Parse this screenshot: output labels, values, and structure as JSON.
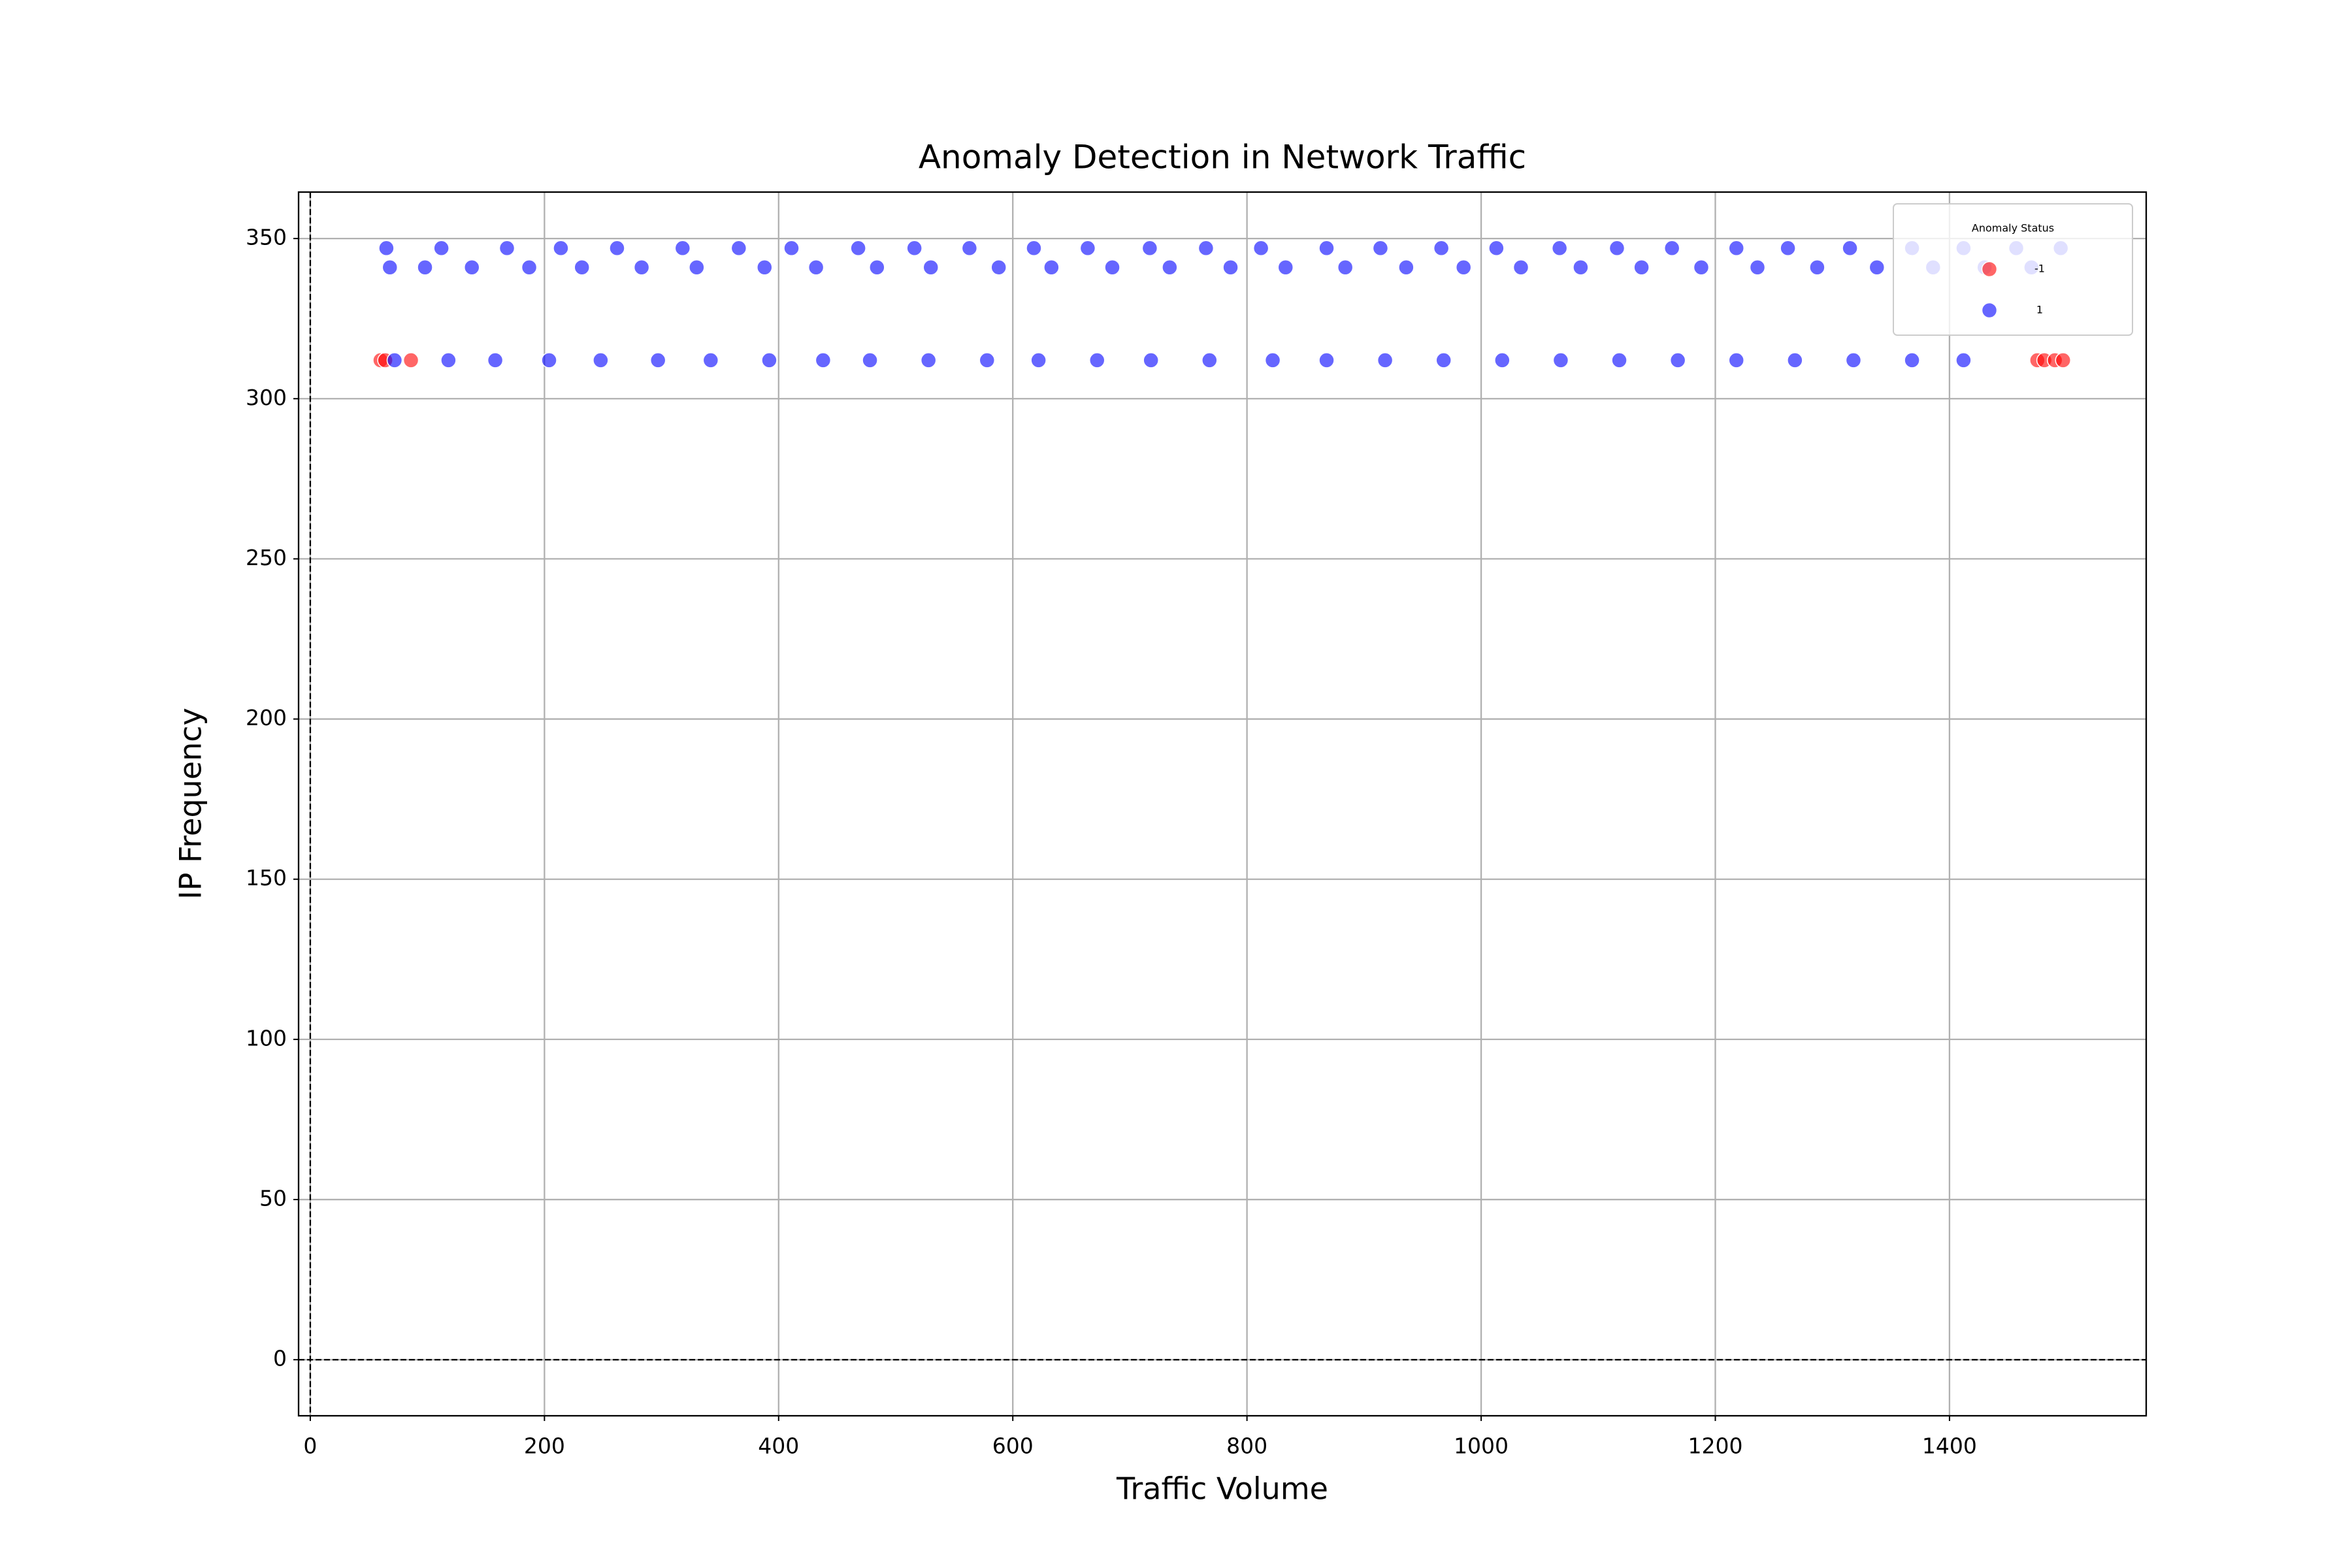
{
  "chart_data": {
    "type": "scatter",
    "title": "Anomaly Detection in Network Traffic",
    "x_label": "Traffic Volume",
    "y_label": "IP Frequency",
    "xlim": [
      -10,
      1568
    ],
    "ylim": [
      -17.5,
      364.5
    ],
    "xticks": [
      0,
      200,
      400,
      600,
      800,
      1000,
      1200,
      1400
    ],
    "yticks": [
      0,
      50,
      100,
      150,
      200,
      250,
      300,
      350
    ],
    "grid": true,
    "legend_title": "Anomaly Status",
    "legend_position": "upper right",
    "reference_lines": [
      {
        "axis": "y",
        "value": 0
      },
      {
        "axis": "x",
        "value": 0
      }
    ],
    "series": [
      {
        "name": "-1",
        "color": "#ff0000",
        "x": [
          60,
          64,
          86,
          1475,
          1481,
          1490,
          1497
        ],
        "values": [
          312,
          312,
          312,
          312,
          312,
          312,
          312
        ]
      },
      {
        "name": "1",
        "color": "#0000ff",
        "x": [
          65,
          112,
          168,
          214,
          262,
          318,
          366,
          411,
          468,
          516,
          563,
          618,
          664,
          717,
          765,
          812,
          868,
          914,
          966,
          1013,
          1067,
          1116,
          1163,
          1218,
          1262,
          1315,
          1368,
          1412,
          1457,
          1495,
          68,
          98,
          138,
          187,
          232,
          283,
          330,
          388,
          432,
          484,
          530,
          588,
          633,
          685,
          734,
          786,
          833,
          884,
          936,
          985,
          1034,
          1085,
          1137,
          1188,
          1236,
          1287,
          1338,
          1386,
          1430,
          1470,
          72,
          118,
          158,
          204,
          248,
          297,
          342,
          392,
          438,
          478,
          528,
          578,
          622,
          672,
          718,
          768,
          822,
          868,
          918,
          968,
          1018,
          1068,
          1118,
          1168,
          1218,
          1268,
          1318,
          1368,
          1412
        ],
        "values": [
          347,
          347,
          347,
          347,
          347,
          347,
          347,
          347,
          347,
          347,
          347,
          347,
          347,
          347,
          347,
          347,
          347,
          347,
          347,
          347,
          347,
          347,
          347,
          347,
          347,
          347,
          347,
          347,
          347,
          347,
          341,
          341,
          341,
          341,
          341,
          341,
          341,
          341,
          341,
          341,
          341,
          341,
          341,
          341,
          341,
          341,
          341,
          341,
          341,
          341,
          341,
          341,
          341,
          341,
          341,
          341,
          341,
          341,
          341,
          341,
          312,
          312,
          312,
          312,
          312,
          312,
          312,
          312,
          312,
          312,
          312,
          312,
          312,
          312,
          312,
          312,
          312,
          312,
          312,
          312,
          312,
          312,
          312,
          312,
          312,
          312,
          312,
          312,
          312
        ]
      }
    ]
  }
}
